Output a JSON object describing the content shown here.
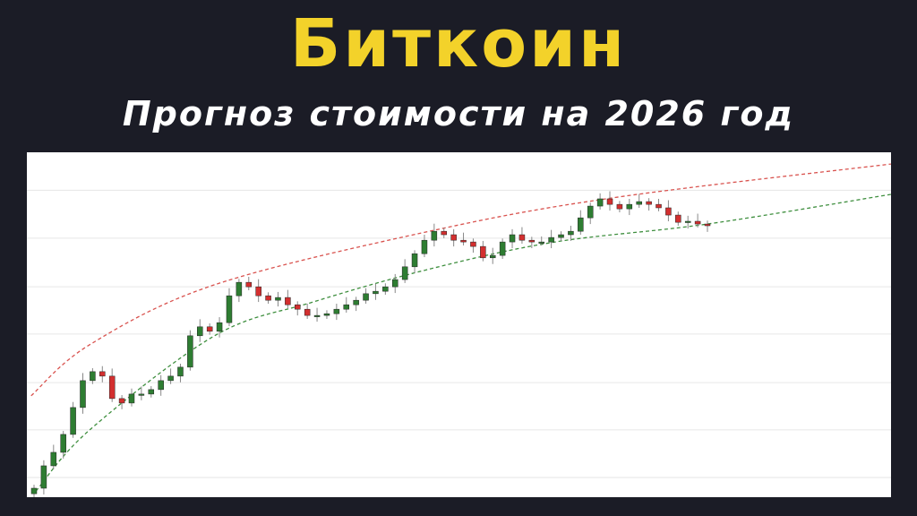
{
  "header": {
    "title": "Биткоин",
    "subtitle": "Прогноз стоимости на 2026 год"
  },
  "colors": {
    "background": "#1b1c26",
    "title": "#f3d22a",
    "up": "#2e7d32",
    "down": "#d32f2f",
    "upper_band": "#d9534f",
    "lower_band": "#3f8f3f",
    "grid": "#e6e6e6"
  },
  "chart_data": {
    "type": "candlestick",
    "title": "",
    "xlabel": "",
    "ylabel": "",
    "ylim": [
      0,
      100
    ],
    "xlim": [
      0,
      88
    ],
    "grid": "horizontal",
    "gridlines": [
      5.7,
      19.5,
      33.2,
      47.3,
      61,
      75.1,
      89
    ],
    "first_open": 1,
    "closes": [
      2.6,
      9.1,
      13,
      18.2,
      26,
      33.8,
      36.4,
      35.1,
      28.6,
      27.3,
      29.9,
      29.9,
      31.2,
      33.8,
      35.1,
      37.7,
      46.8,
      49.4,
      48.1,
      50.6,
      58.4,
      62.3,
      61,
      58.4,
      57.1,
      57.9,
      55.8,
      54.5,
      52.7,
      52.7,
      53.2,
      54.5,
      55.8,
      57.1,
      59,
      59.7,
      61,
      63.1,
      66.8,
      70.6,
      74.5,
      77.1,
      76.1,
      74.5,
      74,
      72.7,
      69.4,
      70.1,
      74,
      76.1,
      74.5,
      74,
      74,
      75.3,
      76.1,
      77.1,
      81,
      84.4,
      86.5,
      84.9,
      83.6,
      84.9,
      85.7,
      84.9,
      83.9,
      81.8,
      79.7,
      80,
      79.2,
      78.7
    ],
    "upper_band": [
      [
        -0.3,
        29.4
      ],
      [
        5.7,
        44.2
      ],
      [
        18.5,
        61.6
      ],
      [
        41,
        77.4
      ],
      [
        59.8,
        87
      ],
      [
        87.8,
        96.6
      ]
    ],
    "lower_band": [
      [
        0.2,
        1.8
      ],
      [
        5.7,
        19.5
      ],
      [
        18.5,
        46.8
      ],
      [
        28.6,
        56.6
      ],
      [
        40.6,
        66.2
      ],
      [
        53.4,
        74
      ],
      [
        69,
        79.2
      ],
      [
        87.8,
        87.8
      ]
    ]
  }
}
